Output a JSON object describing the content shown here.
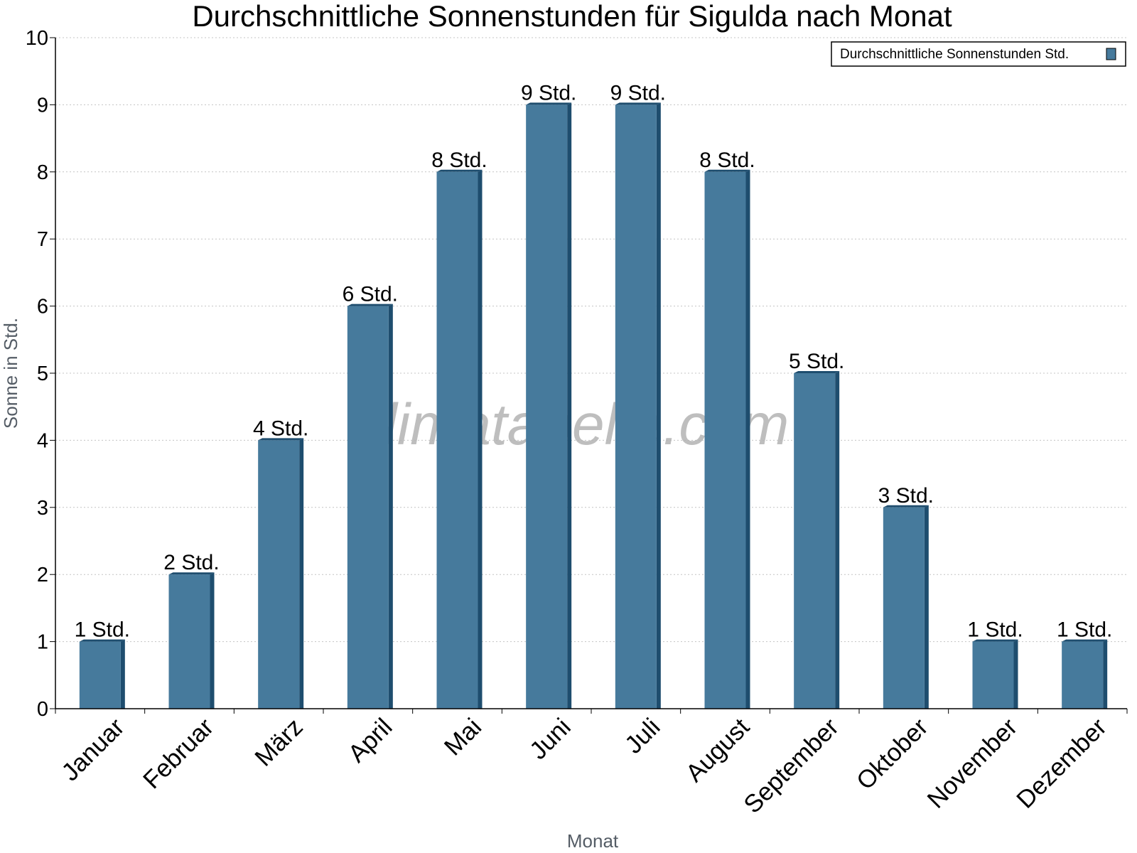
{
  "chart_data": {
    "type": "bar",
    "title": "Durchschnittliche Sonnenstunden für Sigulda nach Monat",
    "xlabel": "Monat",
    "ylabel": "Sonne in Std.",
    "ylim": [
      0,
      10
    ],
    "yticks": [
      0,
      1,
      2,
      3,
      4,
      5,
      6,
      7,
      8,
      9,
      10
    ],
    "grid": true,
    "legend_position": "top-right",
    "categories": [
      "Januar",
      "Februar",
      "März",
      "April",
      "Mai",
      "Juni",
      "Juli",
      "August",
      "September",
      "Oktober",
      "November",
      "Dezember"
    ],
    "series": [
      {
        "name": "Durchschnittliche Sonnenstunden Std.",
        "values": [
          1,
          2,
          4,
          6,
          8,
          9,
          9,
          8,
          5,
          3,
          1,
          1
        ],
        "labels": [
          "1 Std.",
          "2 Std.",
          "4 Std.",
          "6 Std.",
          "8 Std.",
          "9 Std.",
          "9 Std.",
          "8 Std.",
          "5 Std.",
          "3 Std.",
          "1 Std.",
          "1 Std."
        ],
        "color": "#467a9c",
        "side_color": "#1e4d6e"
      }
    ],
    "watermark": "klimatabelle.com"
  }
}
